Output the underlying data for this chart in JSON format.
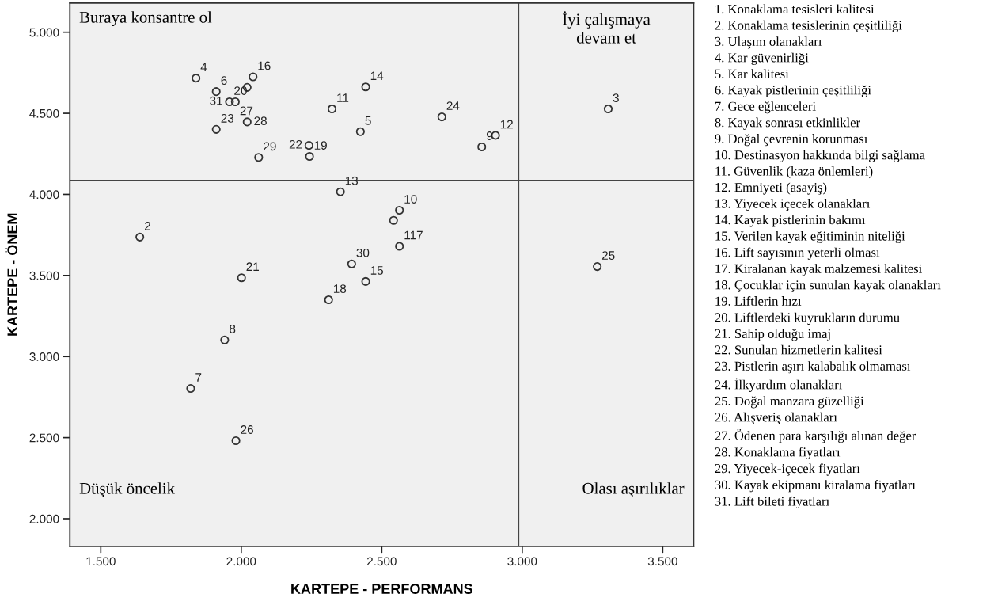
{
  "chart_data": {
    "type": "scatter",
    "xlabel": "KARTEPE - PERFORMANS",
    "ylabel": "KARTEPE - ÖNEM",
    "x": [
      1.839,
      1.911,
      2.021,
      2.042,
      1.958,
      1.979,
      1.911,
      2.021,
      2.062,
      2.241,
      2.243,
      2.323,
      2.353,
      1.639,
      2.001,
      2.311,
      2.443,
      2.424,
      2.714,
      2.905,
      2.856,
      3.306,
      2.563,
      2.542,
      2.563,
      2.393,
      2.443,
      3.267,
      1.941,
      1.82,
      1.981
    ],
    "values": [
      4.717,
      4.634,
      4.66,
      4.725,
      4.571,
      4.571,
      4.401,
      4.447,
      4.228,
      4.302,
      4.234,
      4.527,
      4.016,
      3.737,
      3.486,
      3.35,
      4.663,
      4.387,
      4.478,
      4.364,
      4.293,
      4.527,
      3.902,
      3.84,
      3.68,
      3.571,
      3.463,
      3.555,
      3.102,
      2.803,
      2.481
    ],
    "color": "#333333",
    "marker": "circle",
    "grid": false,
    "xlim": [
      1.39,
      3.61
    ],
    "ylim": [
      1.83,
      5.18
    ],
    "xticks": [
      {
        "value": 1.5,
        "label": "1.500"
      },
      {
        "value": 2.0,
        "label": "2.000"
      },
      {
        "value": 2.5,
        "label": "2.500"
      },
      {
        "value": 3.0,
        "label": "3.000"
      },
      {
        "value": 3.5,
        "label": "3.500"
      }
    ],
    "yticks": [
      {
        "value": 2.0,
        "label": "2.000"
      },
      {
        "value": 2.5,
        "label": "2.500"
      },
      {
        "value": 3.0,
        "label": "3.000"
      },
      {
        "value": 3.5,
        "label": "3.500"
      },
      {
        "value": 4.0,
        "label": "4.000"
      },
      {
        "value": 4.5,
        "label": "4.500"
      },
      {
        "value": 5.0,
        "label": "5.000"
      }
    ],
    "ref_lines": [
      {
        "axis": "x",
        "value": 2.987,
        "color": "#444444"
      },
      {
        "axis": "y",
        "value": 4.086,
        "color": "#444444"
      }
    ],
    "annotations": [
      "Buraya konsantre ol",
      "İyi çalışmaya\ndevam et",
      "Düşük öncelik",
      "Olası aşırılıklar",
      "1. Konaklama tesisleri kalitesi\n2. Konaklama tesislerinin çeşitliliği\n3. Ulaşım olanakları\n4. Kar güvenirliği\n5. Kar kalitesi\n6. Kayak pistlerinin çeşitliliği\n7. Gece eğlenceleri\n8. Kayak sonrası etkinlikler\n9. Doğal çevrenin korunması\n10. Destinasyon hakkında bilgi sağlama\n11. Güvenlik (kaza önlemleri)\n12. Emniyeti (asayiş)\n13. Yiyecek içecek olanakları\n14. Kayak pistlerinin bakımı\n15. Verilen kayak eğitiminin niteliği\n16. Lift sayısının yeterli olması\n17. Kiralanan kayak malzemesi kalitesi\n18. Çocuklar için sunulan kayak olanakları\n19. Liftlerin hızı\n20. Liftlerdeki kuyrukların durumu\n21. Sahip olduğu imaj\n22. Sunulan hizmetlerin kalitesi\n23. Pistlerin aşırı kalabalık olmaması\n24. İlkyardım olanakları\n25. Doğal manzara güzelliği\n26. Alışveriş olanakları\n27. Ödenen para karşılığı alınan değer\n28. Konaklama fiyatları\n29. Yiyecek-içecek fiyatları\n30. Kayak ekipmanı kiralama fiyatları\n31. Lift bileti fiyatları",
      {
        "text": "4",
        "x": 1.839,
        "y": 4.717
      },
      {
        "text": "16",
        "x": 2.042,
        "y": 4.725
      },
      {
        "text": "6",
        "x": 1.911,
        "y": 4.634
      },
      {
        "text": "20",
        "x": 1.958,
        "y": 4.571
      },
      {
        "text": "31",
        "x": 1.958,
        "y": 4.571
      },
      {
        "text": "27",
        "x": 1.979,
        "y": 4.571
      },
      {
        "text": "28",
        "x": 2.021,
        "y": 4.447
      },
      {
        "text": "23",
        "x": 1.911,
        "y": 4.401
      },
      {
        "text": "29",
        "x": 2.062,
        "y": 4.228
      },
      {
        "text": "19",
        "x": 2.243,
        "y": 4.234
      },
      {
        "text": "22",
        "x": 2.241,
        "y": 4.302
      },
      {
        "text": "11",
        "x": 2.323,
        "y": 4.527
      },
      {
        "text": "13",
        "x": 2.353,
        "y": 4.016
      },
      {
        "text": "2",
        "x": 1.639,
        "y": 3.737
      },
      {
        "text": "21",
        "x": 2.001,
        "y": 3.486
      },
      {
        "text": "18",
        "x": 2.311,
        "y": 3.35
      },
      {
        "text": "14",
        "x": 2.443,
        "y": 4.663
      },
      {
        "text": "5",
        "x": 2.424,
        "y": 4.387
      },
      {
        "text": "24",
        "x": 2.714,
        "y": 4.478
      },
      {
        "text": "12",
        "x": 2.905,
        "y": 4.364
      },
      {
        "text": "9",
        "x": 2.856,
        "y": 4.293
      },
      {
        "text": "3",
        "x": 3.306,
        "y": 4.527
      },
      {
        "text": "10",
        "x": 2.563,
        "y": 3.902
      },
      {
        "text": "117",
        "x": 2.563,
        "y": 3.68
      },
      {
        "text": "30",
        "x": 2.393,
        "y": 3.571
      },
      {
        "text": "15",
        "x": 2.443,
        "y": 3.463
      },
      {
        "text": "25",
        "x": 3.267,
        "y": 3.555
      },
      {
        "text": "8",
        "x": 1.941,
        "y": 3.102
      },
      {
        "text": "7",
        "x": 1.82,
        "y": 2.803
      },
      {
        "text": "26",
        "x": 1.981,
        "y": 2.481
      }
    ]
  }
}
